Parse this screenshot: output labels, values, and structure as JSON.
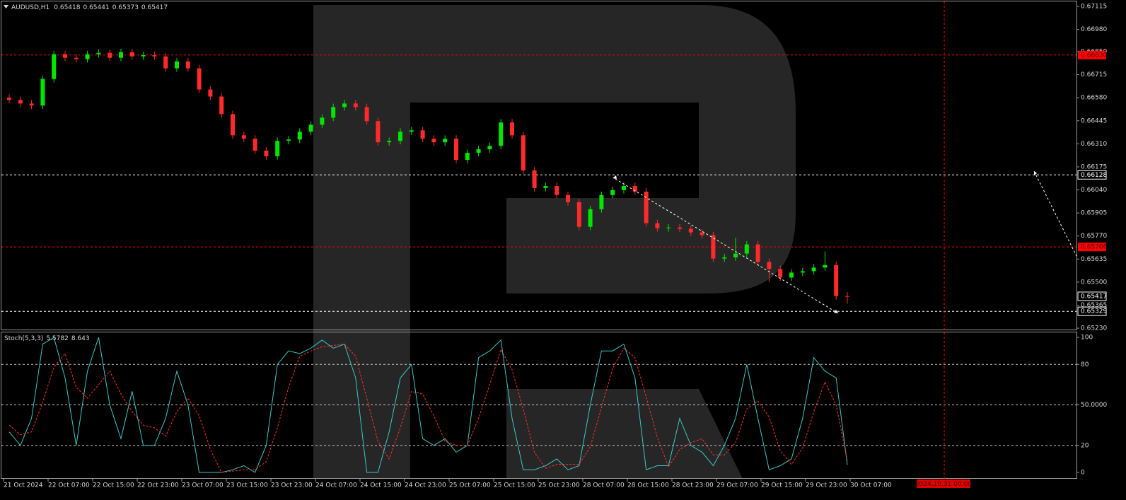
{
  "chart_data": [
    {
      "type": "candlestick",
      "title": "AUDUSD,H1",
      "up_color": "#00e600",
      "down_color": "#ff2a2a",
      "ylim": [
        0.65218,
        0.67144
      ],
      "yticks": [
        0.67115,
        {
          "value": 0.6698,
          "label": "0.66980"
        },
        {
          "value": 0.6685,
          "label": "0.66850"
        },
        0.66715,
        {
          "value": 0.6658,
          "label": "0.66580"
        },
        0.66445,
        {
          "value": 0.6631,
          "label": "0.66310"
        },
        0.66175,
        {
          "value": 0.6604,
          "label": "0.66040"
        },
        0.65905,
        {
          "value": 0.6577,
          "label": "0.65770"
        },
        0.65635,
        {
          "value": 0.655,
          "label": "0.65500"
        },
        0.65365,
        {
          "value": 0.6523,
          "label": "0.65230"
        }
      ],
      "levels": [
        {
          "value": 0.6683,
          "label": "0.66830",
          "color": "#ff0000"
        },
        {
          "value": 0.66128,
          "color": "#ffffff"
        },
        {
          "value": 0.65706,
          "label": "0.65706",
          "color": "#ff0000"
        },
        {
          "value": 0.65329,
          "color": "#ffffff"
        }
      ],
      "x_labels": [
        "21 Oct 2024",
        "22 Oct 07:00",
        "22 Oct 15:00",
        "22 Oct 23:00",
        "23 Oct 07:00",
        "23 Oct 15:00",
        "23 Oct 23:00",
        "24 Oct 07:00",
        "24 Oct 15:00",
        "24 Oct 23:00",
        "25 Oct 07:00",
        "25 Oct 15:00",
        "25 Oct 23:00",
        "28 Oct 07:00",
        "28 Oct 15:00",
        "28 Oct 23:00",
        "29 Oct 07:00",
        "29 Oct 15:00",
        "29 Oct 23:00",
        "30 Oct 07:00"
      ],
      "cursor_label": "2024.10.31 00:00",
      "ohlc": [
        [
          0.6658,
          0.666,
          0.66547,
          0.66567
        ],
        [
          0.66567,
          0.66587,
          0.66526,
          0.66546
        ],
        [
          0.66546,
          0.66566,
          0.66514,
          0.66534
        ],
        [
          0.66534,
          0.6671,
          0.66514,
          0.6669
        ],
        [
          0.6669,
          0.66855,
          0.6667,
          0.66835
        ],
        [
          0.66835,
          0.66855,
          0.66794,
          0.66814
        ],
        [
          0.66814,
          0.66834,
          0.66786,
          0.66806
        ],
        [
          0.66806,
          0.66855,
          0.66786,
          0.66835
        ],
        [
          0.66835,
          0.66863,
          0.66815,
          0.66843
        ],
        [
          0.66843,
          0.66863,
          0.66794,
          0.66814
        ],
        [
          0.66814,
          0.66867,
          0.66794,
          0.66847
        ],
        [
          0.66847,
          0.66867,
          0.66802,
          0.66822
        ],
        [
          0.66822,
          0.6685,
          0.66802,
          0.6683
        ],
        [
          0.6683,
          0.6685,
          0.66802,
          0.66822
        ],
        [
          0.66822,
          0.66842,
          0.66732,
          0.66752
        ],
        [
          0.66752,
          0.66813,
          0.66732,
          0.66793
        ],
        [
          0.66793,
          0.66813,
          0.66732,
          0.66752
        ],
        [
          0.66752,
          0.66772,
          0.66608,
          0.66628
        ],
        [
          0.66628,
          0.66648,
          0.66567,
          0.66587
        ],
        [
          0.66587,
          0.66607,
          0.66464,
          0.66484
        ],
        [
          0.66484,
          0.66504,
          0.6634,
          0.6636
        ],
        [
          0.6636,
          0.6638,
          0.6632,
          0.6634
        ],
        [
          0.6634,
          0.6636,
          0.6625,
          0.6627
        ],
        [
          0.6627,
          0.6629,
          0.66217,
          0.66237
        ],
        [
          0.66237,
          0.66347,
          0.66217,
          0.66327
        ],
        [
          0.66327,
          0.66355,
          0.66307,
          0.66335
        ],
        [
          0.66335,
          0.66401,
          0.66315,
          0.66381
        ],
        [
          0.66381,
          0.66442,
          0.66361,
          0.66422
        ],
        [
          0.66422,
          0.66483,
          0.66402,
          0.66463
        ],
        [
          0.66463,
          0.66545,
          0.66443,
          0.66525
        ],
        [
          0.66525,
          0.66566,
          0.66505,
          0.66546
        ],
        [
          0.66546,
          0.66566,
          0.66505,
          0.66525
        ],
        [
          0.66525,
          0.66545,
          0.66423,
          0.66443
        ],
        [
          0.66443,
          0.66463,
          0.66299,
          0.66319
        ],
        [
          0.66319,
          0.66347,
          0.66299,
          0.66327
        ],
        [
          0.66327,
          0.66401,
          0.66307,
          0.66381
        ],
        [
          0.66381,
          0.66409,
          0.66361,
          0.66389
        ],
        [
          0.66389,
          0.66409,
          0.6632,
          0.6634
        ],
        [
          0.6634,
          0.6636,
          0.66299,
          0.66319
        ],
        [
          0.66319,
          0.6636,
          0.66299,
          0.6634
        ],
        [
          0.6634,
          0.6636,
          0.66196,
          0.66216
        ],
        [
          0.66216,
          0.66277,
          0.66196,
          0.66257
        ],
        [
          0.66257,
          0.66298,
          0.66237,
          0.66278
        ],
        [
          0.66278,
          0.66318,
          0.66258,
          0.66298
        ],
        [
          0.66298,
          0.66455,
          0.66278,
          0.66435
        ],
        [
          0.66435,
          0.66455,
          0.6634,
          0.6636
        ],
        [
          0.6636,
          0.6638,
          0.66134,
          0.66154
        ],
        [
          0.66154,
          0.66174,
          0.66031,
          0.66051
        ],
        [
          0.66051,
          0.66083,
          0.66031,
          0.66063
        ],
        [
          0.66063,
          0.66083,
          0.6599,
          0.6601
        ],
        [
          0.6601,
          0.6603,
          0.65948,
          0.65968
        ],
        [
          0.65968,
          0.65988,
          0.65804,
          0.65824
        ],
        [
          0.65824,
          0.65947,
          0.65804,
          0.65927
        ],
        [
          0.65927,
          0.6603,
          0.65907,
          0.6601
        ],
        [
          0.6601,
          0.66059,
          0.6599,
          0.66039
        ],
        [
          0.66039,
          0.66083,
          0.66019,
          0.66063
        ],
        [
          0.66063,
          0.66083,
          0.6601,
          0.6603
        ],
        [
          0.6603,
          0.6605,
          0.65825,
          0.65845
        ],
        [
          0.65845,
          0.65865,
          0.65796,
          0.65816
        ],
        [
          0.65816,
          0.6584,
          0.65796,
          0.6582
        ],
        [
          0.6582,
          0.6584,
          0.65792,
          0.65812
        ],
        [
          0.65812,
          0.65832,
          0.65771,
          0.65791
        ],
        [
          0.65791,
          0.65811,
          0.65755,
          0.65775
        ],
        [
          0.65775,
          0.65795,
          0.65618,
          0.65638
        ],
        [
          0.65638,
          0.65665,
          0.65618,
          0.65645
        ],
        [
          0.65645,
          0.6576,
          0.65625,
          0.65667
        ],
        [
          0.65667,
          0.65741,
          0.65647,
          0.65721
        ],
        [
          0.65721,
          0.65741,
          0.65598,
          0.65618
        ],
        [
          0.65618,
          0.65638,
          0.655,
          0.65577
        ],
        [
          0.65577,
          0.65597,
          0.65507,
          0.65527
        ],
        [
          0.65527,
          0.65576,
          0.65507,
          0.65556
        ],
        [
          0.65556,
          0.65584,
          0.65536,
          0.65564
        ],
        [
          0.65564,
          0.65605,
          0.65544,
          0.65585
        ],
        [
          0.65585,
          0.6568,
          0.65565,
          0.656
        ],
        [
          0.656,
          0.6562,
          0.65398,
          0.65418
        ],
        [
          0.65418,
          0.65441,
          0.65373,
          0.65417
        ]
      ]
    },
    {
      "type": "line",
      "title": "Stoch(5,3,3)",
      "ylim": [
        -4.7,
        103.7
      ],
      "yticks": [
        100,
        80,
        {
          "value": 50,
          "label": "50.0000"
        },
        20,
        0
      ],
      "level_lines": true,
      "series": [
        {
          "color": "#3cc8c8",
          "dashed": false,
          "values": [
            30,
            20,
            40,
            95,
            100,
            70,
            20,
            75,
            100,
            50,
            25,
            60,
            20,
            20,
            40,
            75,
            50,
            0,
            0,
            0,
            2,
            5,
            0,
            20,
            80,
            90,
            88,
            92,
            98,
            92,
            95,
            70,
            0,
            0,
            30,
            70,
            80,
            25,
            20,
            25,
            15,
            20,
            85,
            90,
            98,
            40,
            2,
            2,
            5,
            10,
            2,
            5,
            50,
            90,
            90,
            95,
            70,
            2,
            5,
            5,
            40,
            20,
            15,
            5,
            20,
            40,
            80,
            40,
            2,
            5,
            10,
            40,
            85,
            75,
            70,
            5.5782
          ]
        },
        {
          "color": "#ff3030",
          "dashed": true,
          "values": [
            35,
            28,
            30,
            52,
            78,
            88,
            63,
            55,
            65,
            75,
            58,
            45,
            35,
            33,
            27,
            45,
            55,
            42,
            17,
            0,
            1,
            2,
            2,
            8,
            33,
            63,
            86,
            90,
            93,
            94,
            95,
            86,
            55,
            23,
            10,
            33,
            60,
            58,
            42,
            23,
            20,
            20,
            40,
            65,
            91,
            76,
            47,
            15,
            3,
            6,
            6,
            6,
            19,
            48,
            77,
            92,
            85,
            56,
            26,
            4,
            17,
            22,
            25,
            13,
            13,
            22,
            47,
            53,
            41,
            16,
            6,
            18,
            45,
            67,
            50,
            8.643
          ]
        }
      ]
    }
  ]
}
